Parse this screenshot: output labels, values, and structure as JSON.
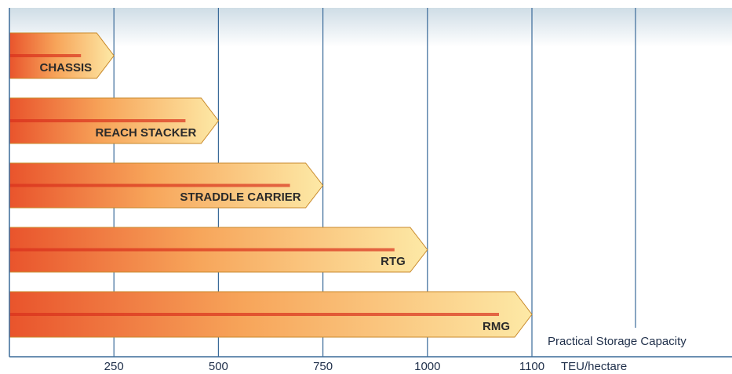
{
  "chart_data": {
    "type": "arrowbar",
    "categories": [
      "CHASSIS",
      "REACH STACKER",
      "STRADDLE CARRIER",
      "RTG",
      "RMG"
    ],
    "values": [
      250,
      500,
      750,
      1000,
      1100
    ],
    "xlim": [
      0,
      1100
    ],
    "xticks": [
      250,
      500,
      750,
      1000,
      1100
    ],
    "xlabel": "TEU/hectare",
    "annotation": "Practical Storage Capacity",
    "grid": true,
    "colors": [
      "#e9542c",
      "#f7a55a",
      "#fde9a6"
    ]
  }
}
